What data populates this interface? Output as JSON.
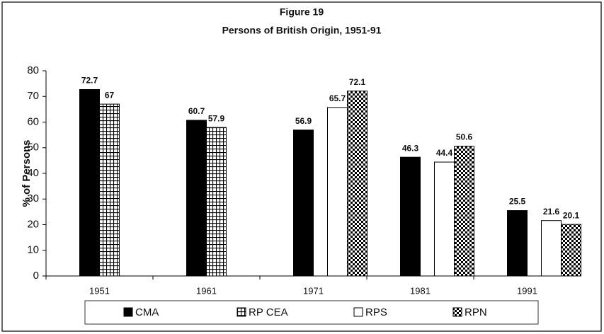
{
  "chart_data": {
    "type": "bar",
    "title": "Figure 19",
    "subtitle": "Persons of British Origin, 1951-91",
    "y_label": "% of Persons",
    "categories": [
      "1951",
      "1961",
      "1971",
      "1981",
      "1991"
    ],
    "series": [
      {
        "name": "CMA",
        "color": "#000000",
        "pattern": "solid",
        "values": [
          72.7,
          60.7,
          56.9,
          46.3,
          25.5
        ]
      },
      {
        "name": "RP CEA",
        "color": "#000000",
        "pattern": "grid",
        "values": [
          67,
          57.9,
          null,
          null,
          null
        ]
      },
      {
        "name": "RPS",
        "color": "#000000",
        "pattern": "open",
        "values": [
          null,
          null,
          65.7,
          44.4,
          21.6
        ]
      },
      {
        "name": "RPN",
        "color": "#000000",
        "pattern": "checker",
        "values": [
          null,
          null,
          72.1,
          50.6,
          20.1
        ]
      }
    ],
    "ylim": [
      0,
      80
    ],
    "yticks": [
      0,
      10,
      20,
      30,
      40,
      50,
      60,
      70,
      80
    ],
    "legend": "bottom"
  }
}
